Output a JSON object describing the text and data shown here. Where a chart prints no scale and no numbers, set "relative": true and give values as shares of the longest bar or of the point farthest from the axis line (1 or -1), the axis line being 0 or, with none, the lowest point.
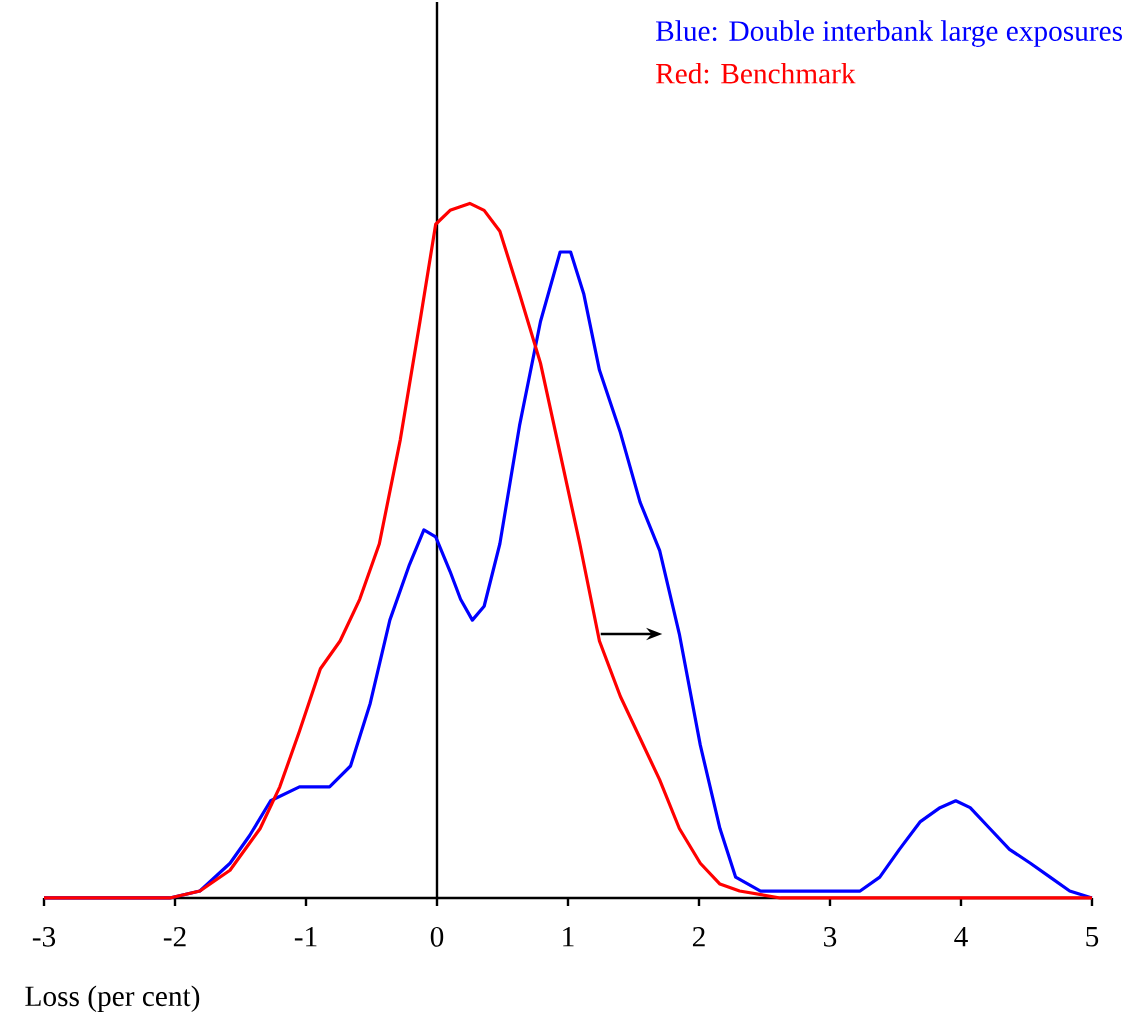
{
  "chart_data": {
    "type": "line",
    "relative": true,
    "xlabel": "Loss (per cent)",
    "xlim": [
      -3,
      5
    ],
    "xticks": [
      -3,
      -2,
      -1,
      0,
      1,
      2,
      3,
      4,
      5
    ],
    "legend": "top right",
    "marker": "none",
    "series": [
      {
        "name": "Blue: Double interbank large exposures",
        "color": "#0000ff",
        "x": [
          -3.0,
          -2.04,
          -1.81,
          -1.58,
          -1.43,
          -1.27,
          -1.05,
          -0.82,
          -0.66,
          -0.51,
          -0.36,
          -0.21,
          -0.1,
          -0.01,
          0.1,
          0.18,
          0.27,
          0.36,
          0.48,
          0.63,
          0.79,
          0.94,
          1.02,
          1.12,
          1.24,
          1.4,
          1.55,
          1.7,
          1.85,
          2.01,
          2.16,
          2.28,
          2.47,
          3.23,
          3.38,
          3.53,
          3.69,
          3.84,
          3.96,
          4.07,
          4.22,
          4.37,
          4.53,
          4.68,
          4.83,
          5.0
        ],
        "values": [
          0,
          0,
          0.01,
          0.05,
          0.09,
          0.14,
          0.16,
          0.16,
          0.19,
          0.28,
          0.4,
          0.48,
          0.53,
          0.52,
          0.47,
          0.43,
          0.4,
          0.42,
          0.51,
          0.68,
          0.83,
          0.93,
          0.93,
          0.87,
          0.76,
          0.67,
          0.57,
          0.5,
          0.38,
          0.22,
          0.1,
          0.03,
          0.01,
          0.01,
          0.03,
          0.07,
          0.11,
          0.13,
          0.14,
          0.13,
          0.1,
          0.07,
          0.05,
          0.03,
          0.01,
          0
        ]
      },
      {
        "name": "Red: Benchmark",
        "color": "#ff0000",
        "x": [
          -3.0,
          -2.04,
          -1.81,
          -1.58,
          -1.35,
          -1.2,
          -1.05,
          -0.89,
          -0.74,
          -0.59,
          -0.44,
          -0.28,
          -0.13,
          -0.01,
          0.1,
          0.25,
          0.36,
          0.48,
          0.63,
          0.79,
          0.94,
          1.09,
          1.24,
          1.4,
          1.55,
          1.7,
          1.85,
          2.01,
          2.16,
          2.31,
          2.62,
          5.0
        ],
        "values": [
          0,
          0,
          0.01,
          0.04,
          0.1,
          0.16,
          0.24,
          0.33,
          0.37,
          0.43,
          0.51,
          0.66,
          0.83,
          0.97,
          0.99,
          1.0,
          0.99,
          0.96,
          0.87,
          0.77,
          0.64,
          0.51,
          0.37,
          0.29,
          0.23,
          0.17,
          0.1,
          0.05,
          0.02,
          0.01,
          0,
          0
        ]
      }
    ]
  }
}
